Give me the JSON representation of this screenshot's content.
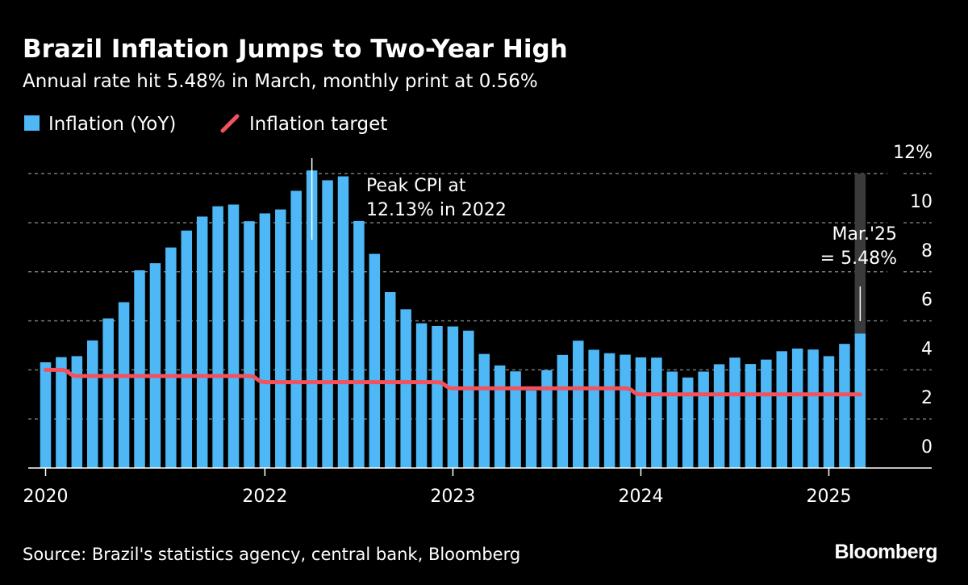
{
  "title": "Brazil Inflation Jumps to Two-Year High",
  "subtitle": "Annual rate hit 5.48% in March, monthly print at 0.56%",
  "source": "Source: Brazil's statistics agency, central bank, Bloomberg",
  "logo": "Bloomberg",
  "colors": {
    "bar": "#4db8f5",
    "target": "#f2525e",
    "highlight_band": "#3a3a3a",
    "background": "#000000"
  },
  "chart_data": {
    "type": "bar",
    "xlabel": "",
    "ylabel": "",
    "ylim": [
      0,
      12
    ],
    "grid": true,
    "legend_placement": "top-left",
    "y_axis_side": "right",
    "y_ticks": [
      {
        "value": 0,
        "label": "0"
      },
      {
        "value": 2,
        "label": "2"
      },
      {
        "value": 4,
        "label": "4"
      },
      {
        "value": 6,
        "label": "6"
      },
      {
        "value": 8,
        "label": "8"
      },
      {
        "value": 10,
        "label": "10"
      },
      {
        "value": 12,
        "label": "12%"
      }
    ],
    "x_ticks": [
      {
        "category": "2020-11",
        "label": "2020"
      },
      {
        "category": "2022-01",
        "label": "2022"
      },
      {
        "category": "2023-01",
        "label": "2023"
      },
      {
        "category": "2024-01",
        "label": "2024"
      },
      {
        "category": "2025-01",
        "label": "2025"
      }
    ],
    "categories": [
      "2020-11",
      "2020-12",
      "2021-01",
      "2021-02",
      "2021-03",
      "2021-04",
      "2021-05",
      "2021-06",
      "2021-07",
      "2021-08",
      "2021-09",
      "2021-10",
      "2021-11",
      "2021-12",
      "2022-01",
      "2022-02",
      "2022-03",
      "2022-04",
      "2022-05",
      "2022-06",
      "2022-07",
      "2022-08",
      "2022-09",
      "2022-10",
      "2022-11",
      "2022-12",
      "2023-01",
      "2023-02",
      "2023-03",
      "2023-04",
      "2023-05",
      "2023-06",
      "2023-07",
      "2023-08",
      "2023-09",
      "2023-10",
      "2023-11",
      "2023-12",
      "2024-01",
      "2024-02",
      "2024-03",
      "2024-04",
      "2024-05",
      "2024-06",
      "2024-07",
      "2024-08",
      "2024-09",
      "2024-10",
      "2024-11",
      "2024-12",
      "2025-01",
      "2025-02",
      "2025-03"
    ],
    "series": [
      {
        "name": "Inflation (YoY)",
        "type": "bar",
        "values": [
          4.31,
          4.52,
          4.56,
          5.2,
          6.1,
          6.76,
          8.06,
          8.35,
          8.99,
          9.68,
          10.25,
          10.67,
          10.74,
          10.06,
          10.38,
          10.54,
          11.3,
          12.13,
          11.73,
          11.89,
          10.07,
          8.73,
          7.17,
          6.47,
          5.9,
          5.79,
          5.77,
          5.6,
          4.65,
          4.18,
          3.94,
          3.16,
          3.99,
          4.61,
          5.19,
          4.82,
          4.68,
          4.62,
          4.51,
          4.5,
          3.93,
          3.69,
          3.93,
          4.23,
          4.5,
          4.24,
          4.42,
          4.76,
          4.87,
          4.83,
          4.56,
          5.06,
          5.48
        ]
      },
      {
        "name": "Inflation target",
        "type": "line",
        "values": [
          4.0,
          4.0,
          3.75,
          3.75,
          3.75,
          3.75,
          3.75,
          3.75,
          3.75,
          3.75,
          3.75,
          3.75,
          3.75,
          3.75,
          3.5,
          3.5,
          3.5,
          3.5,
          3.5,
          3.5,
          3.5,
          3.5,
          3.5,
          3.5,
          3.5,
          3.5,
          3.25,
          3.25,
          3.25,
          3.25,
          3.25,
          3.25,
          3.25,
          3.25,
          3.25,
          3.25,
          3.25,
          3.25,
          3.0,
          3.0,
          3.0,
          3.0,
          3.0,
          3.0,
          3.0,
          3.0,
          3.0,
          3.0,
          3.0,
          3.0,
          3.0,
          3.0,
          3.0
        ]
      }
    ],
    "annotations": [
      {
        "category": "2022-04",
        "lines": [
          "Peak CPI at",
          "12.13% in 2022"
        ]
      },
      {
        "category": "2025-03",
        "lines": [
          "Mar.'25",
          "= 5.48%"
        ],
        "highlight": true
      }
    ]
  }
}
